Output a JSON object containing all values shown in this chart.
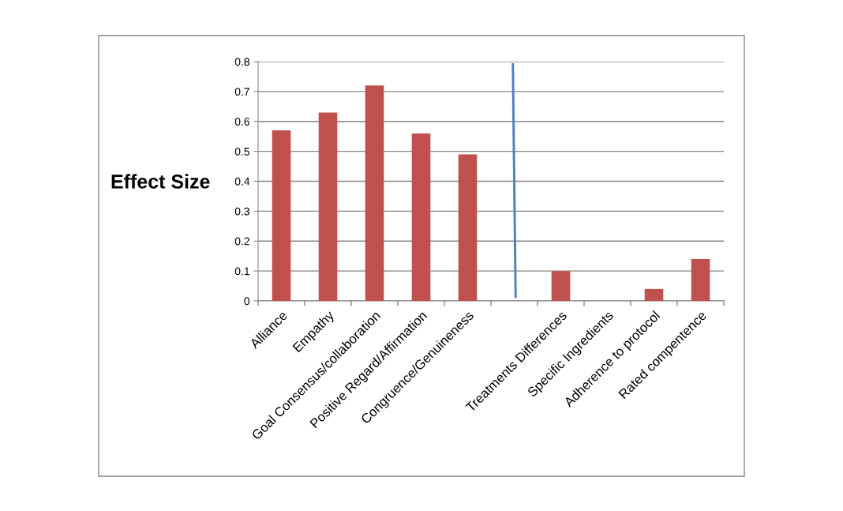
{
  "chart_data": {
    "type": "bar",
    "ylabel": "Effect Size",
    "categories": [
      "Alliance",
      "Empathy",
      "Goal Consensus/collaboration",
      "Positive Regard/Affirmation",
      "Congruence/Genuineness",
      null,
      "Treatments Differences",
      "Specific Ingredients",
      "Adherence to protocol",
      "Rated compentence"
    ],
    "values": [
      0.57,
      0.63,
      0.72,
      0.56,
      0.49,
      null,
      0.1,
      0,
      0.04,
      0.14
    ],
    "color": "#c0504d",
    "ylim": [
      0,
      0.8
    ],
    "yticks": [
      0,
      0.1,
      0.2,
      0.3,
      0.4,
      0.5,
      0.6,
      0.7,
      0.8
    ],
    "grid": "y"
  }
}
